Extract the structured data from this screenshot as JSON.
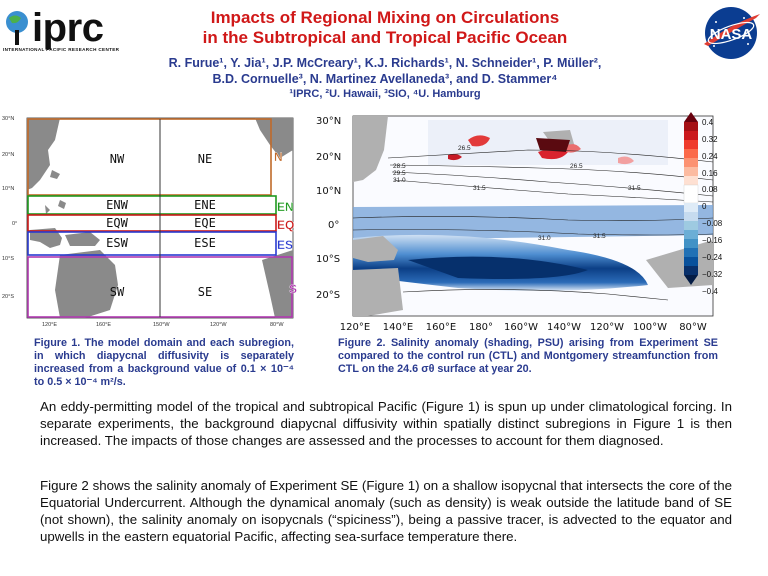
{
  "header": {
    "title_line1": "Impacts of Regional Mixing on Circulations",
    "title_line2": "in the Subtropical and Tropical Pacific Ocean",
    "authors_line1": "R. Furue¹, Y. Jia¹, J.P. McCreary¹, K.J. Richards¹, N. Schneider¹, P. Müller²,",
    "authors_line2": "B.D. Cornuelle³, N. Martinez Avellaneda³, and D. Stammer⁴",
    "affiliations": "¹IPRC, ²U. Hawaii, ³SIO, ⁴U. Hamburg",
    "logo_left": {
      "letters": "iprc",
      "tagline": "INTERNATIONAL PACIFIC RESEARCH CENTER"
    },
    "logo_right": {
      "text": "NASA"
    }
  },
  "figure1": {
    "lat_labels": [
      "30°N",
      "20°N",
      "10°N",
      "0°",
      "10°S",
      "20°S"
    ],
    "lon_labels": [
      "120°E",
      "160°E",
      "150°W",
      "120°W",
      "80°W"
    ],
    "boxes": [
      "NW",
      "NE",
      "ENW",
      "ENE",
      "EQW",
      "EQE",
      "ESW",
      "ESE",
      "SW",
      "SE"
    ],
    "region_tags": [
      {
        "label": "N",
        "color": "#c06a2a"
      },
      {
        "label": "EN",
        "color": "#1f9a1f"
      },
      {
        "label": "EQ",
        "color": "#cc1a1a"
      },
      {
        "label": "ES",
        "color": "#2a3bd0"
      },
      {
        "label": "S",
        "color": "#b03ab0"
      }
    ],
    "caption": "Figure 1. The model domain and each subregion, in which diapycnal diffusivity is separately increased from a background value of 0.1 × 10⁻⁴ to 0.5 × 10⁻⁴ m²/s."
  },
  "figure2": {
    "lat_labels": [
      "30°N",
      "20°N",
      "10°N",
      "0°",
      "10°S",
      "20°S"
    ],
    "lon_labels": [
      "120°E",
      "140°E",
      "160°E",
      "180°",
      "160°W",
      "140°W",
      "120°W",
      "100°W",
      "80°W"
    ],
    "colorbar_labels": [
      "0.4",
      "0.32",
      "0.24",
      "0.16",
      "0.08",
      "0",
      "−0.08",
      "−0.16",
      "−0.24",
      "−0.32",
      "−0.4"
    ],
    "contour_labels": [
      "26.5",
      "28.5",
      "29.5",
      "31.0",
      "31.5",
      "26.5",
      "31.5",
      "31.0",
      "31.5"
    ],
    "caption": "Figure 2. Salinity anomaly (shading, PSU) arising from Experiment SE compared to the control run (CTL) and Montgomery streamfunction from CTL on the 24.6 σθ surface at year 20."
  },
  "body": {
    "paragraph1": "An eddy-permitting model of the tropical and subtropical Pacific (Figure 1) is spun up under climatological forcing. In separate experiments, the background diapycnal diffusivity within spatially distinct subregions in Figure 1 is then increased. The impacts of those changes are assessed and the processes to account for them diagnosed.",
    "paragraph2": "Figure 2 shows the salinity anomaly of Experiment SE (Figure 1) on a shallow isopycnal that intersects the core of the Equatorial Undercurrent. Although the dynamical anomaly (such as density) is weak outside the latitude band of SE (not shown), the salinity anomaly on isopycnals (“spiciness”), being a passive tracer, is advected to the equator and upwells in the eastern equatorial Pacific, affecting sea-surface temperature there."
  }
}
